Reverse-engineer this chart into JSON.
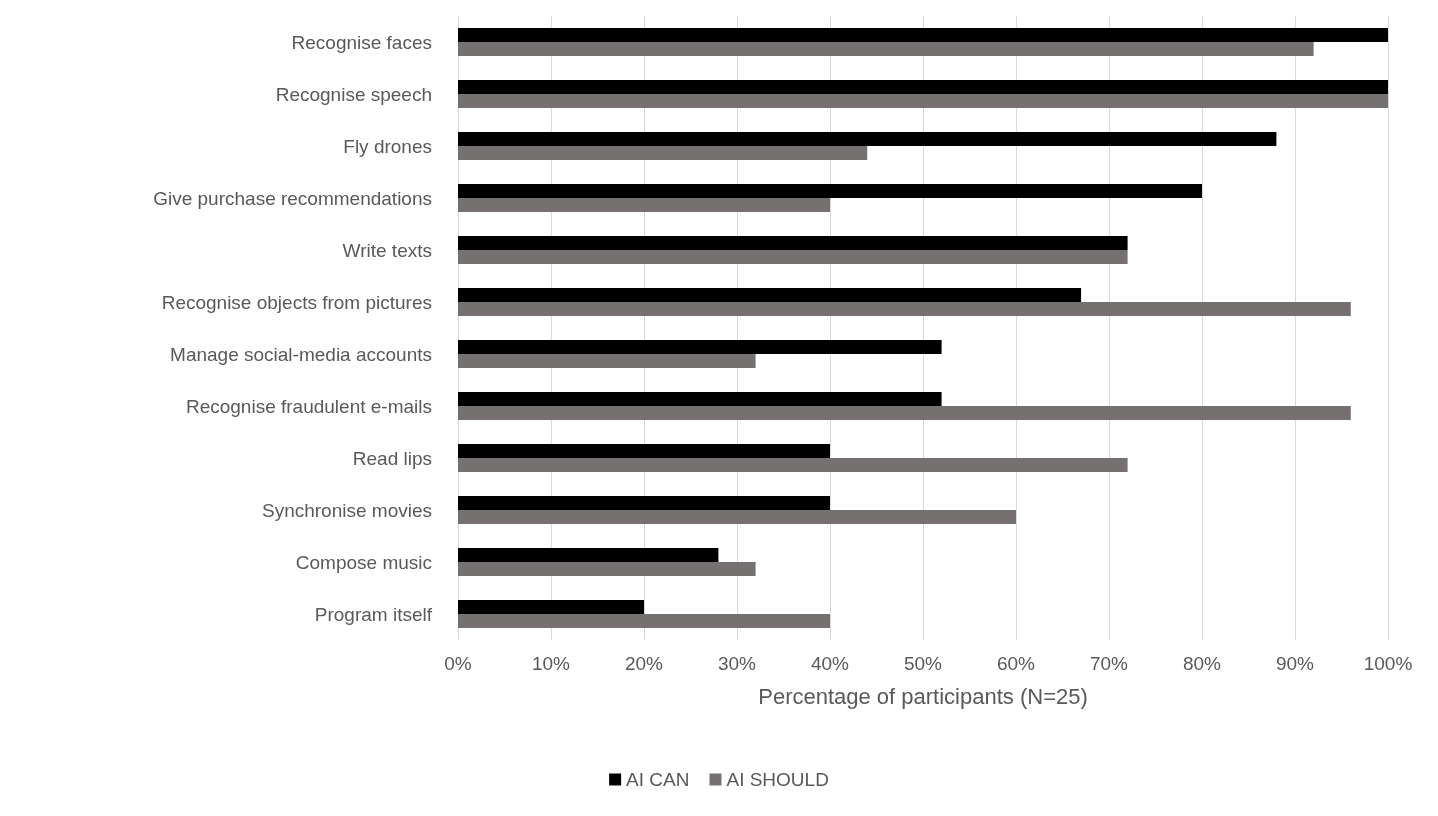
{
  "chart_data": {
    "type": "bar",
    "orientation": "horizontal",
    "xlabel": "Percentage of participants (N=25)",
    "categories": [
      "Recognise faces",
      "Recognise speech",
      "Fly drones",
      "Give purchase recommendations",
      "Write texts",
      "Recognise objects from pictures",
      "Manage social-media accounts",
      "Recognise fraudulent e-mails",
      "Read lips",
      "Synchronise movies",
      "Compose music",
      "Program itself"
    ],
    "series": [
      {
        "name": "AI CAN",
        "color": "#000000",
        "values": [
          100,
          100,
          88,
          80,
          72,
          67,
          52,
          52,
          40,
          40,
          28,
          20
        ]
      },
      {
        "name": "AI SHOULD",
        "color": "#767171",
        "values": [
          92,
          100,
          44,
          40,
          72,
          96,
          32,
          96,
          72,
          60,
          32,
          40
        ]
      }
    ],
    "xlim": [
      0,
      100
    ],
    "xticks": [
      {
        "value": 0,
        "label": "0%"
      },
      {
        "value": 10,
        "label": "10%"
      },
      {
        "value": 20,
        "label": "20%"
      },
      {
        "value": 30,
        "label": "30%"
      },
      {
        "value": 40,
        "label": "40%"
      },
      {
        "value": 50,
        "label": "50%"
      },
      {
        "value": 60,
        "label": "60%"
      },
      {
        "value": 70,
        "label": "70%"
      },
      {
        "value": 80,
        "label": "80%"
      },
      {
        "value": 90,
        "label": "90%"
      },
      {
        "value": 100,
        "label": "100%"
      }
    ],
    "grid": "x",
    "legend": "bottom"
  }
}
